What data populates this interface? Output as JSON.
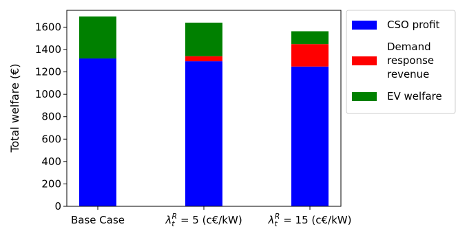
{
  "chart_data": {
    "type": "bar",
    "stacked": true,
    "categories": [
      "Base Case",
      "λ_t^R = 5 (c€/kW)",
      "λ_t^R = 15 (c€/kW)"
    ],
    "category_labels": [
      {
        "plain": "Base Case"
      },
      {
        "sym": "λ",
        "sub": "t",
        "sup": "R",
        "rest": " = 5 (c€/kW)"
      },
      {
        "sym": "λ",
        "sub": "t",
        "sup": "R",
        "rest": " = 15 (c€/kW)"
      }
    ],
    "series": [
      {
        "name": "CSO profit",
        "color": "#0000ff",
        "values": [
          1320,
          1295,
          1248
        ]
      },
      {
        "name": "Demand response revenue",
        "legend_lines": [
          "Demand",
          "response",
          "revenue"
        ],
        "color": "#ff0000",
        "values": [
          0,
          45,
          200
        ]
      },
      {
        "name": "EV welfare",
        "color": "#008000",
        "values": [
          375,
          300,
          115
        ]
      }
    ],
    "ylabel": "Total welfare (€)",
    "xlabel": "",
    "ylim": [
      0,
      1750
    ],
    "yticks": [
      0,
      200,
      400,
      600,
      800,
      1000,
      1200,
      1400,
      1600
    ],
    "grid": false,
    "legend_position": "outside-right-top"
  }
}
